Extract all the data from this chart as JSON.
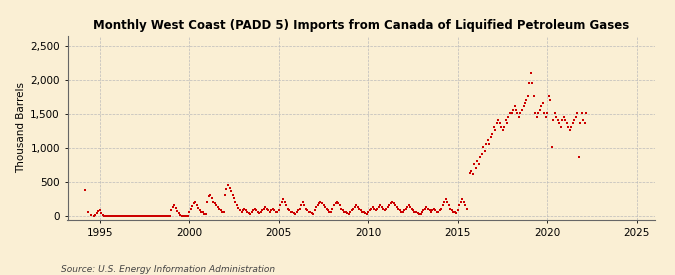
{
  "title": "Monthly West Coast (PADD 5) Imports from Canada of Liquified Petroleum Gases",
  "ylabel": "Thousand Barrels",
  "source": "Source: U.S. Energy Information Administration",
  "background_color": "#faefd4",
  "dot_color": "#cc0000",
  "xlim": [
    1993.2,
    2026.0
  ],
  "ylim": [
    -60,
    2650
  ],
  "yticks": [
    0,
    500,
    1000,
    1500,
    2000,
    2500
  ],
  "ytick_labels": [
    "0",
    "500",
    "1,000",
    "1,500",
    "2,000",
    "2,500"
  ],
  "xticks": [
    1995,
    2000,
    2005,
    2010,
    2015,
    2020,
    2025
  ],
  "data": [
    [
      1994.17,
      380
    ],
    [
      1994.33,
      60
    ],
    [
      1994.5,
      20
    ],
    [
      1994.67,
      5
    ],
    [
      1994.75,
      10
    ],
    [
      1994.83,
      50
    ],
    [
      1994.92,
      70
    ],
    [
      1995.0,
      90
    ],
    [
      1995.08,
      40
    ],
    [
      1995.17,
      10
    ],
    [
      1995.25,
      5
    ],
    [
      1995.33,
      5
    ],
    [
      1995.42,
      5
    ],
    [
      1995.5,
      5
    ],
    [
      1995.58,
      5
    ],
    [
      1995.67,
      5
    ],
    [
      1995.75,
      5
    ],
    [
      1995.83,
      5
    ],
    [
      1995.92,
      5
    ],
    [
      1996.0,
      5
    ],
    [
      1996.08,
      5
    ],
    [
      1996.17,
      5
    ],
    [
      1996.25,
      5
    ],
    [
      1996.33,
      5
    ],
    [
      1996.42,
      5
    ],
    [
      1996.5,
      5
    ],
    [
      1996.58,
      5
    ],
    [
      1996.67,
      5
    ],
    [
      1996.75,
      5
    ],
    [
      1996.83,
      5
    ],
    [
      1996.92,
      5
    ],
    [
      1997.0,
      5
    ],
    [
      1997.08,
      5
    ],
    [
      1997.17,
      5
    ],
    [
      1997.25,
      5
    ],
    [
      1997.33,
      5
    ],
    [
      1997.42,
      5
    ],
    [
      1997.5,
      5
    ],
    [
      1997.58,
      5
    ],
    [
      1997.67,
      5
    ],
    [
      1997.75,
      5
    ],
    [
      1997.83,
      5
    ],
    [
      1997.92,
      5
    ],
    [
      1998.0,
      5
    ],
    [
      1998.08,
      5
    ],
    [
      1998.17,
      5
    ],
    [
      1998.25,
      5
    ],
    [
      1998.33,
      5
    ],
    [
      1998.42,
      5
    ],
    [
      1998.5,
      5
    ],
    [
      1998.58,
      5
    ],
    [
      1998.67,
      5
    ],
    [
      1998.75,
      5
    ],
    [
      1998.83,
      5
    ],
    [
      1998.92,
      5
    ],
    [
      1999.0,
      80
    ],
    [
      1999.08,
      130
    ],
    [
      1999.17,
      160
    ],
    [
      1999.25,
      110
    ],
    [
      1999.33,
      70
    ],
    [
      1999.42,
      40
    ],
    [
      1999.5,
      15
    ],
    [
      1999.58,
      5
    ],
    [
      1999.67,
      5
    ],
    [
      1999.75,
      5
    ],
    [
      1999.83,
      5
    ],
    [
      1999.92,
      5
    ],
    [
      2000.0,
      60
    ],
    [
      2000.08,
      100
    ],
    [
      2000.17,
      150
    ],
    [
      2000.25,
      190
    ],
    [
      2000.33,
      210
    ],
    [
      2000.42,
      160
    ],
    [
      2000.5,
      110
    ],
    [
      2000.58,
      85
    ],
    [
      2000.67,
      65
    ],
    [
      2000.75,
      55
    ],
    [
      2000.83,
      35
    ],
    [
      2000.92,
      25
    ],
    [
      2001.0,
      210
    ],
    [
      2001.08,
      290
    ],
    [
      2001.17,
      310
    ],
    [
      2001.25,
      260
    ],
    [
      2001.33,
      210
    ],
    [
      2001.42,
      185
    ],
    [
      2001.5,
      155
    ],
    [
      2001.58,
      125
    ],
    [
      2001.67,
      105
    ],
    [
      2001.75,
      85
    ],
    [
      2001.83,
      65
    ],
    [
      2001.92,
      55
    ],
    [
      2002.0,
      310
    ],
    [
      2002.08,
      390
    ],
    [
      2002.17,
      460
    ],
    [
      2002.25,
      410
    ],
    [
      2002.33,
      360
    ],
    [
      2002.42,
      310
    ],
    [
      2002.5,
      260
    ],
    [
      2002.58,
      210
    ],
    [
      2002.67,
      160
    ],
    [
      2002.75,
      110
    ],
    [
      2002.83,
      85
    ],
    [
      2002.92,
      65
    ],
    [
      2003.0,
      85
    ],
    [
      2003.08,
      105
    ],
    [
      2003.17,
      85
    ],
    [
      2003.25,
      65
    ],
    [
      2003.33,
      45
    ],
    [
      2003.42,
      35
    ],
    [
      2003.5,
      55
    ],
    [
      2003.58,
      85
    ],
    [
      2003.67,
      105
    ],
    [
      2003.75,
      85
    ],
    [
      2003.83,
      65
    ],
    [
      2003.92,
      45
    ],
    [
      2004.0,
      65
    ],
    [
      2004.08,
      85
    ],
    [
      2004.17,
      105
    ],
    [
      2004.25,
      125
    ],
    [
      2004.33,
      105
    ],
    [
      2004.42,
      85
    ],
    [
      2004.5,
      65
    ],
    [
      2004.58,
      85
    ],
    [
      2004.67,
      105
    ],
    [
      2004.75,
      85
    ],
    [
      2004.83,
      65
    ],
    [
      2004.92,
      55
    ],
    [
      2005.0,
      85
    ],
    [
      2005.08,
      155
    ],
    [
      2005.17,
      205
    ],
    [
      2005.25,
      255
    ],
    [
      2005.33,
      205
    ],
    [
      2005.42,
      155
    ],
    [
      2005.5,
      105
    ],
    [
      2005.58,
      85
    ],
    [
      2005.67,
      65
    ],
    [
      2005.75,
      55
    ],
    [
      2005.83,
      45
    ],
    [
      2005.92,
      35
    ],
    [
      2006.0,
      55
    ],
    [
      2006.08,
      85
    ],
    [
      2006.17,
      105
    ],
    [
      2006.25,
      155
    ],
    [
      2006.33,
      205
    ],
    [
      2006.42,
      155
    ],
    [
      2006.5,
      105
    ],
    [
      2006.58,
      85
    ],
    [
      2006.67,
      65
    ],
    [
      2006.75,
      55
    ],
    [
      2006.83,
      45
    ],
    [
      2006.92,
      35
    ],
    [
      2007.0,
      85
    ],
    [
      2007.08,
      125
    ],
    [
      2007.17,
      155
    ],
    [
      2007.25,
      185
    ],
    [
      2007.33,
      205
    ],
    [
      2007.42,
      185
    ],
    [
      2007.5,
      155
    ],
    [
      2007.58,
      125
    ],
    [
      2007.67,
      105
    ],
    [
      2007.75,
      85
    ],
    [
      2007.83,
      65
    ],
    [
      2007.92,
      55
    ],
    [
      2008.0,
      105
    ],
    [
      2008.08,
      155
    ],
    [
      2008.17,
      185
    ],
    [
      2008.25,
      205
    ],
    [
      2008.33,
      185
    ],
    [
      2008.42,
      155
    ],
    [
      2008.5,
      105
    ],
    [
      2008.58,
      85
    ],
    [
      2008.67,
      65
    ],
    [
      2008.75,
      55
    ],
    [
      2008.83,
      45
    ],
    [
      2008.92,
      35
    ],
    [
      2009.0,
      55
    ],
    [
      2009.08,
      85
    ],
    [
      2009.17,
      105
    ],
    [
      2009.25,
      135
    ],
    [
      2009.33,
      155
    ],
    [
      2009.42,
      125
    ],
    [
      2009.5,
      105
    ],
    [
      2009.58,
      85
    ],
    [
      2009.67,
      65
    ],
    [
      2009.75,
      55
    ],
    [
      2009.83,
      45
    ],
    [
      2009.92,
      35
    ],
    [
      2010.0,
      55
    ],
    [
      2010.08,
      85
    ],
    [
      2010.17,
      105
    ],
    [
      2010.25,
      125
    ],
    [
      2010.33,
      105
    ],
    [
      2010.42,
      85
    ],
    [
      2010.5,
      105
    ],
    [
      2010.58,
      125
    ],
    [
      2010.67,
      155
    ],
    [
      2010.75,
      135
    ],
    [
      2010.83,
      105
    ],
    [
      2010.92,
      85
    ],
    [
      2011.0,
      105
    ],
    [
      2011.08,
      125
    ],
    [
      2011.17,
      155
    ],
    [
      2011.25,
      185
    ],
    [
      2011.33,
      205
    ],
    [
      2011.42,
      185
    ],
    [
      2011.5,
      155
    ],
    [
      2011.58,
      125
    ],
    [
      2011.67,
      105
    ],
    [
      2011.75,
      85
    ],
    [
      2011.83,
      65
    ],
    [
      2011.92,
      55
    ],
    [
      2012.0,
      85
    ],
    [
      2012.08,
      105
    ],
    [
      2012.17,
      135
    ],
    [
      2012.25,
      155
    ],
    [
      2012.33,
      135
    ],
    [
      2012.42,
      105
    ],
    [
      2012.5,
      85
    ],
    [
      2012.58,
      65
    ],
    [
      2012.67,
      55
    ],
    [
      2012.75,
      45
    ],
    [
      2012.83,
      35
    ],
    [
      2012.92,
      25
    ],
    [
      2013.0,
      55
    ],
    [
      2013.08,
      85
    ],
    [
      2013.17,
      105
    ],
    [
      2013.25,
      125
    ],
    [
      2013.33,
      105
    ],
    [
      2013.42,
      85
    ],
    [
      2013.5,
      65
    ],
    [
      2013.58,
      85
    ],
    [
      2013.67,
      105
    ],
    [
      2013.75,
      85
    ],
    [
      2013.83,
      65
    ],
    [
      2013.92,
      55
    ],
    [
      2014.0,
      85
    ],
    [
      2014.08,
      105
    ],
    [
      2014.17,
      155
    ],
    [
      2014.25,
      205
    ],
    [
      2014.33,
      255
    ],
    [
      2014.42,
      205
    ],
    [
      2014.5,
      155
    ],
    [
      2014.58,
      105
    ],
    [
      2014.67,
      85
    ],
    [
      2014.75,
      65
    ],
    [
      2014.83,
      55
    ],
    [
      2014.92,
      45
    ],
    [
      2015.0,
      85
    ],
    [
      2015.08,
      155
    ],
    [
      2015.17,
      205
    ],
    [
      2015.25,
      255
    ],
    [
      2015.33,
      205
    ],
    [
      2015.42,
      155
    ],
    [
      2015.5,
      105
    ],
    [
      2015.67,
      630
    ],
    [
      2015.75,
      660
    ],
    [
      2015.83,
      610
    ],
    [
      2015.92,
      760
    ],
    [
      2016.0,
      710
    ],
    [
      2016.08,
      810
    ],
    [
      2016.17,
      760
    ],
    [
      2016.25,
      860
    ],
    [
      2016.33,
      910
    ],
    [
      2016.42,
      1010
    ],
    [
      2016.5,
      960
    ],
    [
      2016.58,
      1060
    ],
    [
      2016.67,
      1110
    ],
    [
      2016.75,
      1060
    ],
    [
      2016.83,
      1160
    ],
    [
      2016.92,
      1210
    ],
    [
      2017.0,
      1310
    ],
    [
      2017.08,
      1260
    ],
    [
      2017.17,
      1360
    ],
    [
      2017.25,
      1410
    ],
    [
      2017.33,
      1360
    ],
    [
      2017.42,
      1310
    ],
    [
      2017.5,
      1260
    ],
    [
      2017.58,
      1310
    ],
    [
      2017.67,
      1410
    ],
    [
      2017.75,
      1360
    ],
    [
      2017.83,
      1460
    ],
    [
      2017.92,
      1510
    ],
    [
      2018.0,
      1510
    ],
    [
      2018.08,
      1560
    ],
    [
      2018.17,
      1610
    ],
    [
      2018.25,
      1560
    ],
    [
      2018.33,
      1510
    ],
    [
      2018.42,
      1460
    ],
    [
      2018.5,
      1510
    ],
    [
      2018.58,
      1560
    ],
    [
      2018.67,
      1610
    ],
    [
      2018.75,
      1660
    ],
    [
      2018.83,
      1710
    ],
    [
      2018.92,
      1760
    ],
    [
      2019.0,
      1960
    ],
    [
      2019.08,
      2100
    ],
    [
      2019.17,
      1960
    ],
    [
      2019.25,
      1760
    ],
    [
      2019.33,
      1510
    ],
    [
      2019.42,
      1460
    ],
    [
      2019.5,
      1510
    ],
    [
      2019.58,
      1560
    ],
    [
      2019.67,
      1610
    ],
    [
      2019.75,
      1660
    ],
    [
      2019.83,
      1510
    ],
    [
      2019.92,
      1460
    ],
    [
      2020.0,
      1510
    ],
    [
      2020.08,
      1760
    ],
    [
      2020.17,
      1710
    ],
    [
      2020.25,
      1010
    ],
    [
      2020.33,
      1410
    ],
    [
      2020.42,
      1510
    ],
    [
      2020.5,
      1460
    ],
    [
      2020.58,
      1410
    ],
    [
      2020.67,
      1360
    ],
    [
      2020.75,
      1310
    ],
    [
      2020.83,
      1410
    ],
    [
      2020.92,
      1460
    ],
    [
      2021.0,
      1410
    ],
    [
      2021.08,
      1360
    ],
    [
      2021.17,
      1310
    ],
    [
      2021.25,
      1260
    ],
    [
      2021.33,
      1310
    ],
    [
      2021.42,
      1360
    ],
    [
      2021.5,
      1410
    ],
    [
      2021.58,
      1460
    ],
    [
      2021.67,
      1510
    ],
    [
      2021.75,
      860
    ],
    [
      2021.83,
      1360
    ],
    [
      2021.92,
      1510
    ],
    [
      2022.0,
      1410
    ],
    [
      2022.08,
      1360
    ],
    [
      2022.17,
      1510
    ]
  ]
}
